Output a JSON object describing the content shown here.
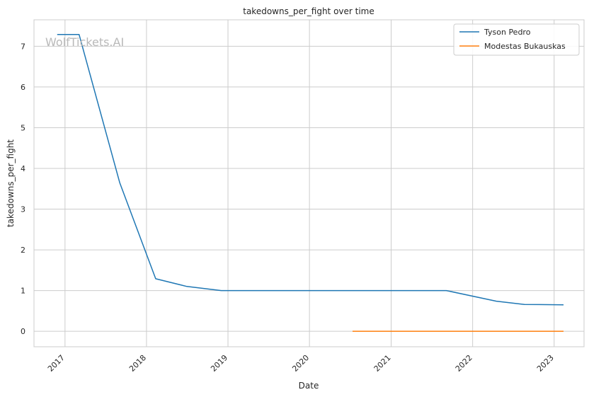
{
  "chart_data": {
    "type": "line",
    "title": "takedowns_per_fight over time",
    "xlabel": "Date",
    "ylabel": "takedowns_per_fight",
    "watermark": "WolfTickets.AI",
    "x_ticks": [
      "2017",
      "2018",
      "2019",
      "2020",
      "2021",
      "2022",
      "2023"
    ],
    "y_ticks": [
      "0",
      "1",
      "2",
      "3",
      "4",
      "5",
      "6",
      "7"
    ],
    "xlim": [
      "2016-08-15",
      "2023-05-15"
    ],
    "ylim": [
      -0.38,
      7.65
    ],
    "grid": true,
    "legend_position": "top-right",
    "series": [
      {
        "name": "Tyson Pedro",
        "color": "#1f77b4",
        "points": [
          [
            "2016-11-27",
            7.29
          ],
          [
            "2017-03-05",
            7.29
          ],
          [
            "2017-09-03",
            3.65
          ],
          [
            "2018-02-11",
            1.29
          ],
          [
            "2018-07-01",
            1.1
          ],
          [
            "2018-12-02",
            1.0
          ],
          [
            "2021-09-05",
            1.0
          ],
          [
            "2022-04-17",
            0.74
          ],
          [
            "2022-08-21",
            0.66
          ],
          [
            "2023-02-12",
            0.65
          ]
        ]
      },
      {
        "name": "Modestas Bukauskas",
        "color": "#ff7f0e",
        "points": [
          [
            "2020-07-12",
            0.0
          ],
          [
            "2023-02-12",
            0.0
          ]
        ]
      }
    ]
  }
}
